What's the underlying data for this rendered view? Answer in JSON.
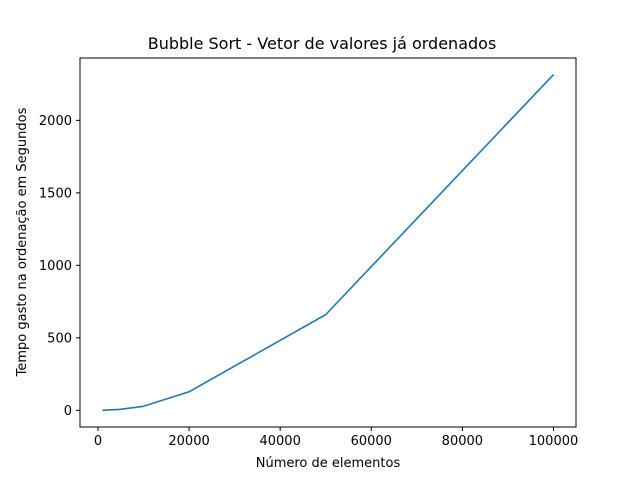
{
  "chart_data": {
    "type": "line",
    "title": "Bubble Sort - Vetor de valores já ordenados",
    "xlabel": "Número de elementos",
    "ylabel": "Tempo gasto na ordenação  em Segundos",
    "xlim": [
      -3950,
      104950
    ],
    "ylim": [
      -115,
      2430
    ],
    "xticks": [
      0,
      20000,
      40000,
      60000,
      80000,
      100000
    ],
    "yticks": [
      0,
      500,
      1000,
      1500,
      2000
    ],
    "grid": false,
    "series": [
      {
        "color": "#1f77b4",
        "x": [
          1000,
          5000,
          10000,
          20000,
          50000,
          100000
        ],
        "y": [
          0,
          7,
          28,
          128,
          660,
          2315
        ]
      }
    ]
  }
}
